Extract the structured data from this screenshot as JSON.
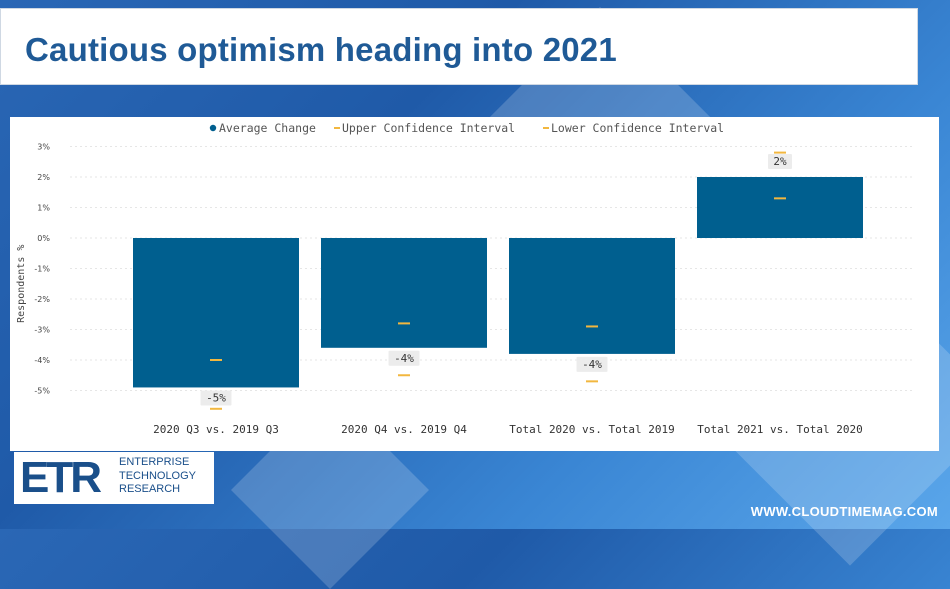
{
  "page": {
    "title": "Cautious optimism heading into 2021",
    "footer_url": "WWW.CLOUDTIMEMAG.COM",
    "logo": {
      "mark": "ETR",
      "lines": [
        "ENTERPRISE",
        "TECHNOLOGY",
        "RESEARCH"
      ]
    }
  },
  "colors": {
    "bar": "#005f8f",
    "confidence": "#f2b73f",
    "title": "#1f5a96"
  },
  "chart_data": {
    "type": "bar",
    "categories": [
      "2020 Q3 vs. 2019 Q3",
      "2020 Q4 vs. 2019 Q4",
      "Total 2020 vs. Total 2019",
      "Total 2021 vs. Total 2020"
    ],
    "series": [
      {
        "name": "Average Change",
        "values": [
          -4.9,
          -3.6,
          -3.8,
          2.0
        ],
        "labels": [
          "-5%",
          "-4%",
          "-4%",
          "2%"
        ]
      },
      {
        "name": "Upper Confidence Interval",
        "values": [
          -4.0,
          -2.8,
          -2.9,
          1.3
        ]
      },
      {
        "name": "Lower Confidence Interval",
        "values": [
          -5.6,
          -4.5,
          -4.7,
          2.8
        ]
      }
    ],
    "ylabel": "Respondents %",
    "xlabel": "",
    "ylim": [
      -5.5,
      3.2
    ],
    "yticks": [
      "3%",
      "2%",
      "1%",
      "0%",
      "-1%",
      "-2%",
      "-3%",
      "-4%",
      "-5%"
    ],
    "ytick_values": [
      3,
      2,
      1,
      0,
      -1,
      -2,
      -3,
      -4,
      -5
    ],
    "legend_position": "top-center",
    "grid": true
  }
}
